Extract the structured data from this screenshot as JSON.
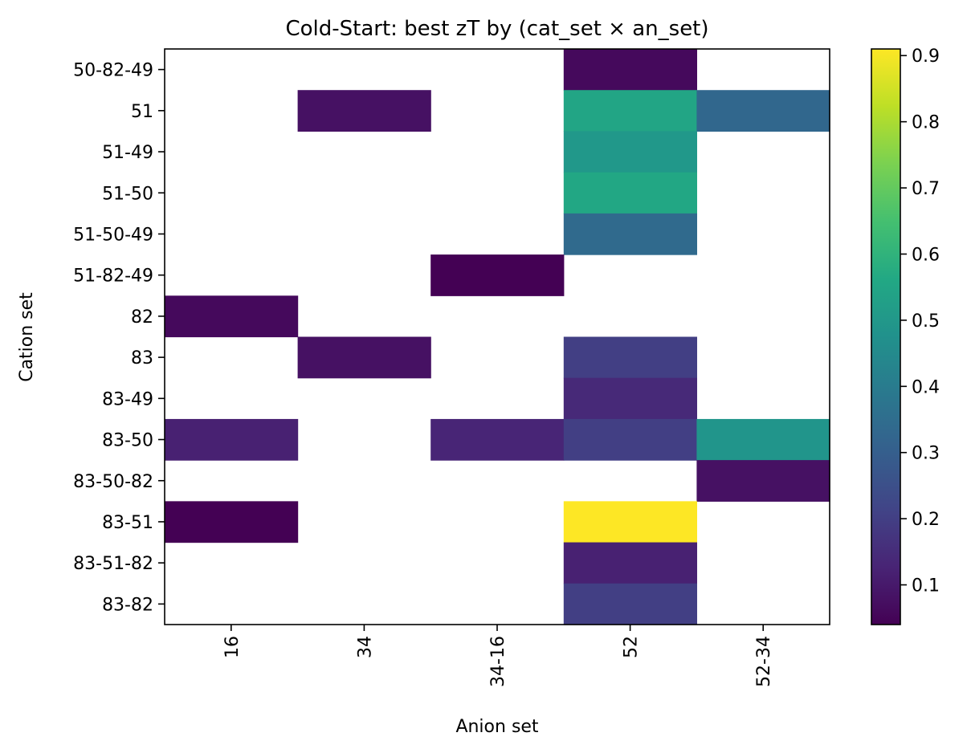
{
  "chart_data": {
    "type": "heatmap",
    "title": "Cold-Start: best zT by (cat_set × an_set)",
    "xlabel": "Anion set",
    "ylabel": "Cation set",
    "x_categories": [
      "16",
      "34",
      "34-16",
      "52",
      "52-34"
    ],
    "y_categories": [
      "50-82-49",
      "51",
      "51-49",
      "51-50",
      "51-50-49",
      "51-82-49",
      "82",
      "83",
      "83-49",
      "83-50",
      "83-50-82",
      "83-51",
      "83-51-82",
      "83-82"
    ],
    "values": [
      [
        null,
        null,
        null,
        0.06,
        null
      ],
      [
        null,
        0.08,
        null,
        0.55,
        0.33
      ],
      [
        null,
        null,
        null,
        0.5,
        null
      ],
      [
        null,
        null,
        null,
        0.56,
        null
      ],
      [
        null,
        null,
        null,
        0.34,
        null
      ],
      [
        null,
        null,
        0.04,
        null,
        null
      ],
      [
        0.06,
        null,
        null,
        null,
        null
      ],
      [
        null,
        0.08,
        null,
        0.2,
        null
      ],
      [
        null,
        null,
        null,
        0.14,
        null
      ],
      [
        0.12,
        null,
        0.13,
        0.2,
        0.49
      ],
      [
        null,
        null,
        null,
        null,
        0.08
      ],
      [
        0.04,
        null,
        null,
        0.91,
        null
      ],
      [
        null,
        null,
        null,
        0.12,
        null
      ],
      [
        null,
        null,
        null,
        0.2,
        null
      ]
    ],
    "colormap": "viridis",
    "colorbar": {
      "range": [
        0.04,
        0.91
      ],
      "ticks": [
        0.1,
        0.2,
        0.3,
        0.4,
        0.5,
        0.6,
        0.7,
        0.8,
        0.9
      ],
      "tick_labels": [
        "0.1",
        "0.2",
        "0.3",
        "0.4",
        "0.5",
        "0.6",
        "0.7",
        "0.8",
        "0.9"
      ]
    },
    "missing_color": "#ffffff",
    "grid": false
  }
}
